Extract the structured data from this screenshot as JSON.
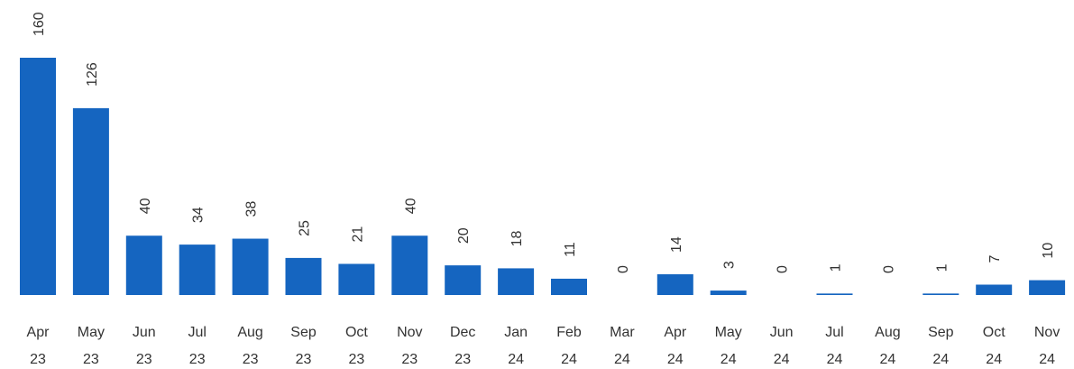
{
  "chart_data": {
    "type": "bar",
    "categories": [
      "Apr 23",
      "May 23",
      "Jun 23",
      "Jul 23",
      "Aug 23",
      "Sep 23",
      "Oct 23",
      "Nov 23",
      "Dec 23",
      "Jan 24",
      "Feb 24",
      "Mar 24",
      "Apr 24",
      "May 24",
      "Jun 24",
      "Jul 24",
      "Aug 24",
      "Sep 24",
      "Oct 24",
      "Nov 24"
    ],
    "values": [
      160,
      126,
      40,
      34,
      38,
      25,
      21,
      40,
      20,
      18,
      11,
      0,
      14,
      3,
      0,
      1,
      0,
      1,
      7,
      10
    ],
    "color": "#1565c0"
  }
}
